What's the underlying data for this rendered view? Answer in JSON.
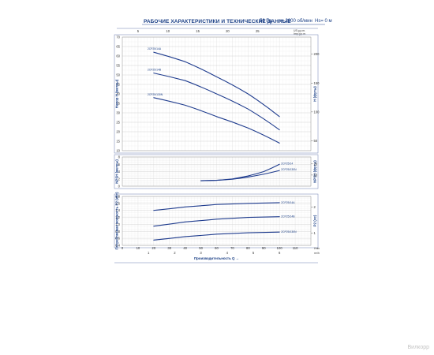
{
  "header": {
    "title": "РАБОЧИЕ ХАРАКТЕРИСТИКИ И ТЕХНИЧЕСКИЕ ДАННЫЕ",
    "freq": "50 Гц",
    "speed": "n= 2900 об/мин",
    "hs": "Hs= 0 м"
  },
  "watermark": "Вилкорр",
  "chart_data": [
    {
      "type": "line",
      "name": "head",
      "ylabel": "Напор H (метры)",
      "ylabel_right": "H (футы)",
      "ylim": [
        10,
        70
      ],
      "yticks": [
        10,
        15,
        20,
        25,
        30,
        35,
        40,
        45,
        50,
        55,
        60,
        65,
        70
      ],
      "right_ticks": [
        {
          "ft": 50,
          "label": "50"
        },
        {
          "ft": 100,
          "label": "100"
        },
        {
          "ft": 150,
          "label": "150"
        },
        {
          "ft": 200,
          "label": "200"
        }
      ],
      "top_axis_ticks": [
        "5",
        "10",
        "15",
        "20",
        "25"
      ],
      "top_axis_units": [
        "US g.p.m.",
        "Imp g.p.m."
      ],
      "series": [
        {
          "name": "2CP25/14A",
          "x": [
            20,
            40,
            60,
            80,
            100
          ],
          "y": [
            62,
            57,
            49,
            40,
            28
          ]
        },
        {
          "name": "2CP25/14B",
          "x": [
            20,
            40,
            60,
            80,
            100
          ],
          "y": [
            51,
            47,
            40,
            32,
            21
          ]
        },
        {
          "name": "2CP25/130N",
          "x": [
            20,
            40,
            60,
            80,
            100
          ],
          "y": [
            38,
            34,
            28,
            22,
            14
          ]
        }
      ]
    },
    {
      "type": "line",
      "name": "npsh",
      "ylabel": "NPSH (метры)",
      "ylabel_right": "NPSH (футы)",
      "ylim": [
        0,
        8
      ],
      "yticks": [
        0,
        2,
        4,
        6,
        8
      ],
      "right_ticks": [
        {
          "ft": 10,
          "label": "10"
        },
        {
          "ft": 20,
          "label": "20"
        }
      ],
      "series": [
        {
          "name": "2CP25/14",
          "x": [
            50,
            60,
            70,
            80,
            90,
            100
          ],
          "y": [
            1.5,
            1.6,
            2.0,
            2.8,
            4.0,
            6.0
          ]
        },
        {
          "name": "2CP25/130N",
          "x": [
            50,
            60,
            70,
            80,
            90,
            100
          ],
          "y": [
            1.5,
            1.6,
            1.9,
            2.5,
            3.3,
            4.3
          ]
        }
      ]
    },
    {
      "type": "line",
      "name": "power",
      "ylabel": "Потребляемая мощность P2 (кВт)",
      "ylabel_right": "P2 (лс)",
      "ylim": [
        0.4,
        1.8
      ],
      "yticks": [
        0.4,
        0.6,
        0.8,
        1.0,
        1.2,
        1.4,
        1.6,
        1.8
      ],
      "right_ticks": [
        {
          "hp": 1,
          "label": "1"
        },
        {
          "hp": 2,
          "label": "2"
        }
      ],
      "xlabel": "Производительность Q",
      "xlim": [
        0,
        120
      ],
      "xticks": [
        0,
        10,
        20,
        30,
        40,
        50,
        60,
        70,
        80,
        90,
        100,
        110
      ],
      "x_unit_right": "l/min",
      "bottom2_ticks": [
        "1",
        "2",
        "3",
        "4",
        "5",
        "6"
      ],
      "bottom2_unit": "m³/h",
      "series": [
        {
          "name": "2CP25/14A",
          "x": [
            20,
            40,
            60,
            80,
            100
          ],
          "y": [
            1.4,
            1.5,
            1.57,
            1.6,
            1.62
          ]
        },
        {
          "name": "2CP25/14B",
          "x": [
            20,
            40,
            60,
            80,
            100
          ],
          "y": [
            0.95,
            1.07,
            1.15,
            1.2,
            1.22
          ]
        },
        {
          "name": "2CP25/130N",
          "x": [
            20,
            40,
            60,
            80,
            100
          ],
          "y": [
            0.55,
            0.65,
            0.72,
            0.76,
            0.78
          ]
        }
      ]
    }
  ],
  "colors": {
    "curve": "#1f3c8e",
    "axis": "#2a4a92",
    "grid": "#e2e2e2",
    "frame": "#6b7fb0"
  }
}
